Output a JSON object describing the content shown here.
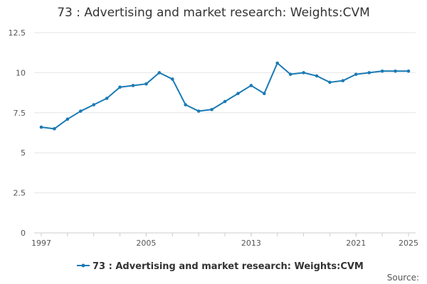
{
  "colors": {
    "series": "#1a7ab5",
    "grid": "#e6e6e6",
    "axis": "#cccccc"
  },
  "chart_data": {
    "type": "line",
    "title": "73 : Advertising and market research: Weights:CVM",
    "xlabel": "",
    "ylabel": "",
    "x": [
      1997,
      1998,
      1999,
      2000,
      2001,
      2002,
      2003,
      2004,
      2005,
      2006,
      2007,
      2008,
      2009,
      2010,
      2011,
      2012,
      2013,
      2014,
      2015,
      2016,
      2017,
      2018,
      2019,
      2020,
      2021,
      2022,
      2023,
      2024,
      2025
    ],
    "xlim": [
      1997,
      2025
    ],
    "ylim": [
      0,
      12.5
    ],
    "x_tick_labels": [
      "1997",
      "2005",
      "2013",
      "2021",
      "2025"
    ],
    "x_tick_values": [
      1997,
      2005,
      2013,
      2021,
      2025
    ],
    "y_tick_labels": [
      "0",
      "2.5",
      "5",
      "7.5",
      "10",
      "12.5"
    ],
    "y_tick_values": [
      0,
      2.5,
      5,
      7.5,
      10,
      12.5
    ],
    "grid": true,
    "legend_position": "bottom",
    "series": [
      {
        "name": "73 : Advertising and market research: Weights:CVM",
        "values": [
          6.6,
          6.5,
          7.1,
          7.6,
          8.0,
          8.4,
          9.1,
          9.2,
          9.3,
          10.0,
          9.6,
          8.0,
          7.6,
          7.7,
          8.2,
          8.7,
          9.2,
          8.7,
          10.6,
          9.9,
          10.0,
          9.8,
          9.4,
          9.5,
          9.9,
          10.0,
          10.1,
          10.1,
          10.1
        ]
      }
    ],
    "source_label": "Source:"
  }
}
